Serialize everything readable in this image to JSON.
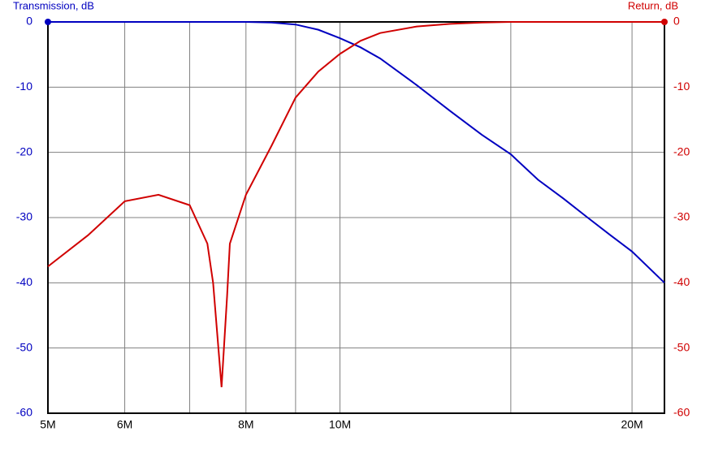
{
  "chart_data": {
    "type": "line",
    "y_label": "Transmission, dB",
    "y2_label": "Return, dB",
    "log_x": true,
    "grid": true,
    "x": [
      5000000,
      5500000,
      6000000,
      6500000,
      7000000,
      7300000,
      7400000,
      7550000,
      7650000,
      7700000,
      8000000,
      8500000,
      9000000,
      9500000,
      10000000,
      10500000,
      11000000,
      12000000,
      13000000,
      14000000,
      15000000,
      16000000,
      17000000,
      18000000,
      19000000,
      20000000,
      21600000
    ],
    "xlim": [
      5000000,
      21600000
    ],
    "xticks": [
      {
        "value": 5000000,
        "label": "5M"
      },
      {
        "value": 6000000,
        "label": "6M"
      },
      {
        "value": 8000000,
        "label": "8M"
      },
      {
        "value": 10000000,
        "label": "10M"
      },
      {
        "value": 20000000,
        "label": "20M"
      }
    ],
    "xminor": [
      7000000,
      9000000,
      15000000
    ],
    "ylim": [
      -60,
      0
    ],
    "yticks": [
      0,
      -10,
      -20,
      -30,
      -40,
      -50,
      -60
    ],
    "y2lim": [
      -60,
      0
    ],
    "y2ticks": [
      0,
      -10,
      -20,
      -30,
      -40,
      -50,
      -60
    ],
    "series": [
      {
        "name": "Transmission",
        "color": "#0000c0",
        "axis": "y",
        "values": [
          0,
          0,
          0,
          0,
          0,
          0,
          0,
          0,
          0,
          0,
          0,
          -0.1,
          -0.4,
          -1.2,
          -2.5,
          -3.9,
          -5.6,
          -9.7,
          -13.7,
          -17.3,
          -20.3,
          -24.2,
          -27.1,
          -30,
          -32.7,
          -35.2,
          -40
        ]
      },
      {
        "name": "Return",
        "color": "#d00000",
        "axis": "y2",
        "values": [
          -37.5,
          -32.7,
          -27.5,
          -26.5,
          -28.1,
          -34,
          -40,
          -56,
          -42,
          -34,
          -26.5,
          -19,
          -11.6,
          -7.6,
          -4.9,
          -2.9,
          -1.7,
          -0.7,
          -0.3,
          -0.1,
          0,
          0,
          0,
          0,
          0,
          0,
          0
        ]
      }
    ]
  }
}
